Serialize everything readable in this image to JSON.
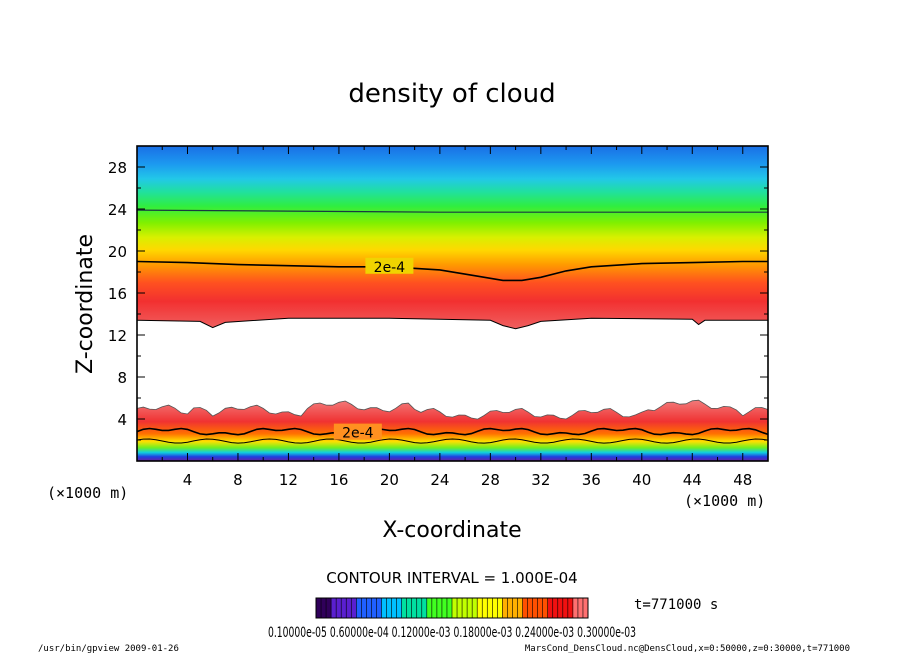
{
  "chart_data": {
    "type": "heatmap",
    "title": "density of cloud",
    "xlabel": "X-coordinate",
    "ylabel": "Z-coordinate",
    "x_unit": "(×1000 m)",
    "y_unit": "(×1000 m)",
    "xlim": [
      0,
      50
    ],
    "ylim": [
      0,
      30
    ],
    "x_ticks": [
      4,
      8,
      12,
      16,
      20,
      24,
      28,
      32,
      36,
      40,
      44,
      48
    ],
    "y_ticks": [
      4,
      8,
      12,
      16,
      20,
      24,
      28
    ],
    "contour_interval_text": "CONTOUR INTERVAL = 1.000E-04",
    "time_text": "t=771000 s",
    "contour_label": "2e-4",
    "contour_labels": [
      {
        "text": "2e-4",
        "x": 20,
        "z": 18.5
      },
      {
        "text": "2e-4",
        "x": 17.5,
        "z": 2.7
      }
    ],
    "contour_2e4_upper": {
      "x": [
        0,
        4,
        8,
        12,
        16,
        20,
        24,
        27,
        29,
        30.5,
        32,
        34,
        36,
        40,
        44,
        48,
        50
      ],
      "z": [
        19.0,
        18.9,
        18.7,
        18.6,
        18.5,
        18.5,
        18.2,
        17.6,
        17.2,
        17.2,
        17.5,
        18.1,
        18.5,
        18.8,
        18.9,
        19.0,
        19.0
      ]
    },
    "upper_cloud_bottom": {
      "x": [
        0,
        5,
        6,
        7,
        12,
        20,
        28,
        29,
        30,
        31,
        32,
        36,
        44,
        44.5,
        45,
        50
      ],
      "z": [
        13.4,
        13.3,
        12.7,
        13.2,
        13.6,
        13.6,
        13.4,
        12.9,
        12.6,
        12.9,
        13.3,
        13.6,
        13.5,
        13.0,
        13.4,
        13.4
      ]
    },
    "lower_cloud_top_z": 4.8,
    "surface_band_z": [
      1.0,
      1.8
    ],
    "colorbar": {
      "labels_text": "0.10000e-05 0.60000e-04 0.12000e-03 0.18000e-03 0.24000e-03 0.30000e-03",
      "colors": [
        "#30005a",
        "#5a1fd0",
        "#2060ff",
        "#00c0ff",
        "#00e0a0",
        "#40ff20",
        "#c0ff00",
        "#ffff00",
        "#ffb000",
        "#ff5000",
        "#f01010",
        "#ff7070"
      ]
    },
    "footer_left": "/usr/bin/gpview   2009-01-26",
    "footer_right": "MarsCond_DensCloud.nc@DensCloud,x=0:50000,z=0:30000,t=771000"
  }
}
